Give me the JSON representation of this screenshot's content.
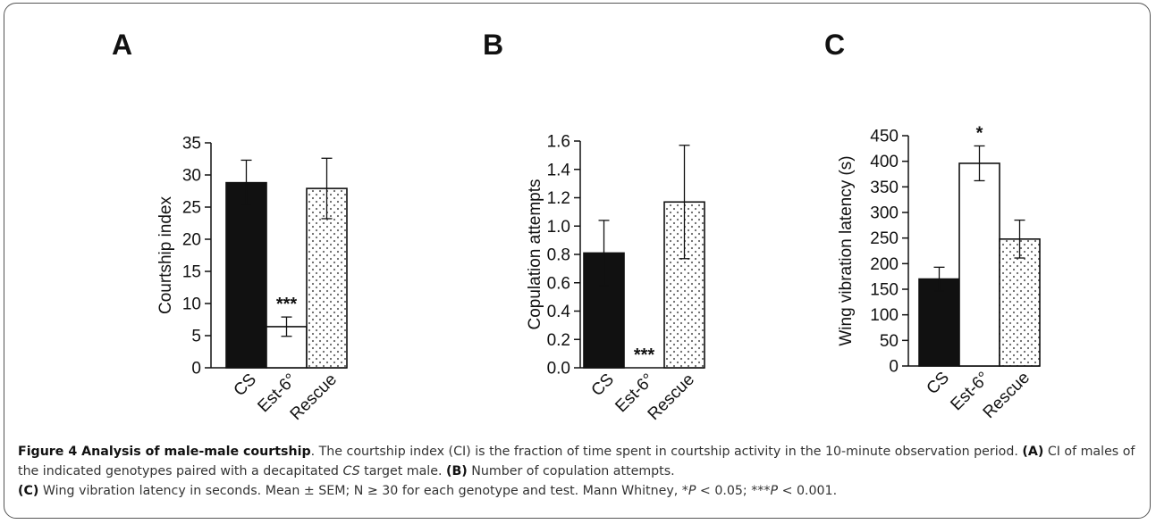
{
  "panels": [
    "A",
    "B",
    "C"
  ],
  "chart_data": [
    {
      "type": "bar",
      "panel": "A",
      "categories": [
        "CS",
        "Est-6°",
        "Rescue"
      ],
      "values": [
        28.8,
        6.4,
        27.9
      ],
      "errors": [
        3.5,
        1.5,
        4.7
      ],
      "significance": [
        "",
        "***",
        ""
      ],
      "bar_fills": [
        "solid-black",
        "white",
        "dotted"
      ],
      "ylabel": "Courtship index",
      "ylim": [
        0,
        35
      ],
      "yticks": [
        "0",
        "5",
        "10",
        "15",
        "20",
        "25",
        "30",
        "35"
      ]
    },
    {
      "type": "bar",
      "panel": "B",
      "categories": [
        "CS",
        "Est-6°",
        "Rescue"
      ],
      "values": [
        0.81,
        0.0,
        1.17
      ],
      "errors": [
        0.23,
        0.0,
        0.4
      ],
      "significance": [
        "",
        "***",
        ""
      ],
      "bar_fills": [
        "solid-black",
        "white",
        "dotted"
      ],
      "ylabel": "Copulation attempts",
      "ylim": [
        0,
        1.6
      ],
      "yticks": [
        "0.0",
        "0.2",
        "0.4",
        "0.6",
        "0.8",
        "1.0",
        "1.2",
        "1.4",
        "1.6"
      ]
    },
    {
      "type": "bar",
      "panel": "C",
      "categories": [
        "CS",
        "Est-6°",
        "Rescue"
      ],
      "values": [
        170,
        396,
        248
      ],
      "errors": [
        23,
        34,
        37
      ],
      "significance": [
        "",
        "*",
        ""
      ],
      "bar_fills": [
        "solid-black",
        "white",
        "dotted"
      ],
      "ylabel": "Wing vibration latency (s)",
      "ylim": [
        0,
        450
      ],
      "yticks": [
        "0",
        "50",
        "100",
        "150",
        "200",
        "250",
        "300",
        "350",
        "400",
        "450"
      ]
    }
  ],
  "caption": {
    "title": "Figure 4 Analysis of male-male courtship",
    "intro": ". The courtship index (CI) is the fraction of time spent in courtship activity in the 10-minute observation period. ",
    "a_label": "(A)",
    "a_text": " CI of males of the indicated genotypes paired with a decapitated ",
    "a_italic": "CS",
    "a_tail": " target male. ",
    "b_label": "(B)",
    "b_text": " Number of copulation attempts.",
    "c_label": "(C)",
    "c_text": " Wing vibration latency in seconds. Mean ± SEM; N ≥ 30 for each genotype and test. Mann Whitney, *",
    "p1": "P",
    "c_mid": " < 0.05; ***",
    "p2": "P",
    "c_end": " < 0.001."
  }
}
